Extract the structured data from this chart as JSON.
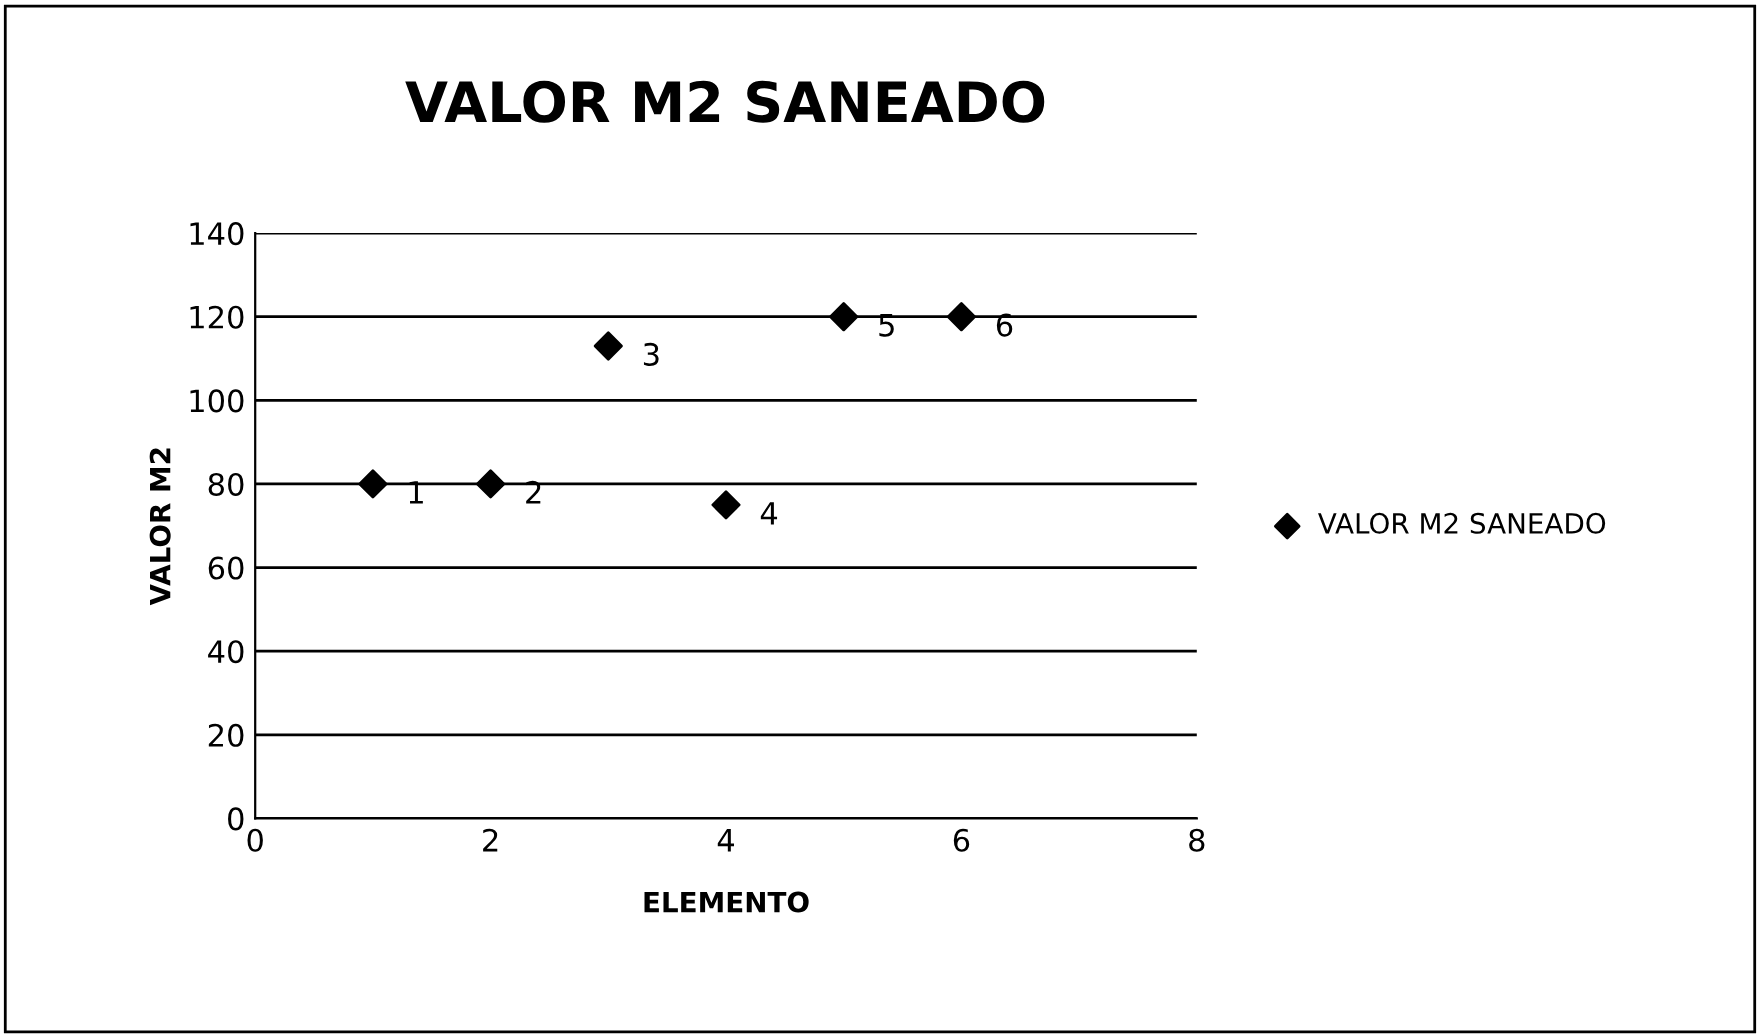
{
  "chart_data": {
    "type": "scatter",
    "title": "VALOR M2 SANEADO",
    "xlabel": "ELEMENTO",
    "ylabel": "VALOR M2",
    "x": [
      1,
      2,
      3,
      4,
      5,
      6
    ],
    "series": [
      {
        "name": "VALOR M2 SANEADO",
        "color": "#000000",
        "values": [
          80,
          80,
          113,
          75,
          120,
          120
        ]
      }
    ],
    "annotations": [
      {
        "text": "1",
        "x": 1,
        "y": 80
      },
      {
        "text": "2",
        "x": 2,
        "y": 80
      },
      {
        "text": "3",
        "x": 3,
        "y": 113
      },
      {
        "text": "4",
        "x": 4,
        "y": 75
      },
      {
        "text": "5",
        "x": 5,
        "y": 120
      },
      {
        "text": "6",
        "x": 6,
        "y": 120
      }
    ],
    "xlim": [
      0,
      8
    ],
    "xticks": [
      0,
      2,
      4,
      6,
      8
    ],
    "ylim": [
      0,
      140
    ],
    "yticks": [
      0,
      20,
      40,
      60,
      80,
      100,
      120,
      140
    ],
    "grid": "y",
    "legend": "right",
    "marker": "diamond"
  }
}
